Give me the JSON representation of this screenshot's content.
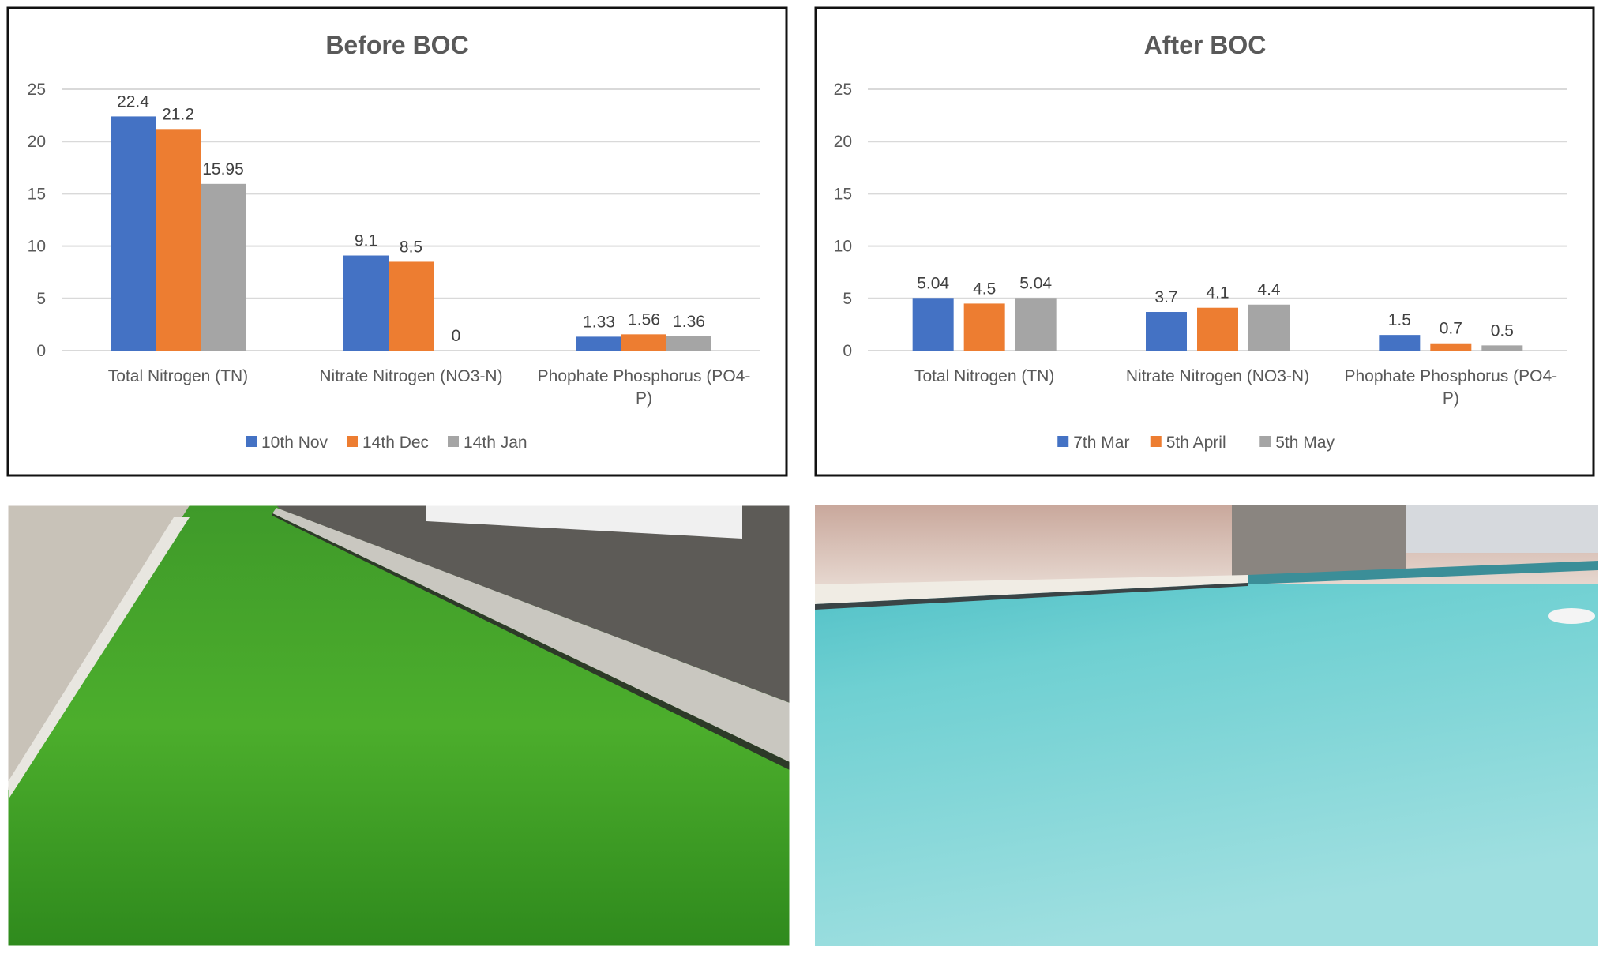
{
  "chart_data": [
    {
      "type": "bar",
      "title": "Before BOC",
      "categories": [
        [
          "Total Nitrogen (TN)"
        ],
        [
          "Nitrate Nitrogen (NO3-N)"
        ],
        [
          "Phophate Phosphorus (PO4-",
          "P)"
        ]
      ],
      "series": [
        {
          "name": "10th Nov",
          "color": "#4472C4",
          "values": [
            22.4,
            9.1,
            1.33
          ],
          "labels": [
            "22.4",
            "9.1",
            "1.33"
          ]
        },
        {
          "name": "14th Dec",
          "color": "#ED7D31",
          "values": [
            21.2,
            8.5,
            1.56
          ],
          "labels": [
            "21.2",
            "8.5",
            "1.56"
          ]
        },
        {
          "name": "14th Jan",
          "color": "#A5A5A5",
          "values": [
            15.95,
            0,
            1.36
          ],
          "labels": [
            "15.95",
            "0",
            "1.36"
          ]
        }
      ],
      "yticks": [
        "0",
        "5",
        "10",
        "15",
        "20",
        "25"
      ],
      "ylim": [
        0,
        25
      ],
      "grid": true,
      "legend": "bottom"
    },
    {
      "type": "bar",
      "title": "After BOC",
      "categories": [
        [
          "Total Nitrogen (TN)"
        ],
        [
          "Nitrate Nitrogen (NO3-N)"
        ],
        [
          "Phophate Phosphorus (PO4-",
          "P)"
        ]
      ],
      "series": [
        {
          "name": "7th Mar",
          "color": "#4472C4",
          "values": [
            5.04,
            3.7,
            1.5
          ],
          "labels": [
            "5.04",
            "3.7",
            "1.5"
          ]
        },
        {
          "name": "5th April",
          "color": "#ED7D31",
          "values": [
            4.5,
            4.1,
            0.7
          ],
          "labels": [
            "4.5",
            "4.1",
            "0.7"
          ]
        },
        {
          "name": "5th May",
          "color": "#A5A5A5",
          "values": [
            5.04,
            4.4,
            0.5
          ],
          "labels": [
            "5.04",
            "4.4",
            "0.5"
          ]
        }
      ],
      "yticks": [
        "0",
        "5",
        "10",
        "15",
        "20",
        "25"
      ],
      "ylim": [
        0,
        25
      ],
      "grid": true,
      "legend": "bottom"
    }
  ]
}
